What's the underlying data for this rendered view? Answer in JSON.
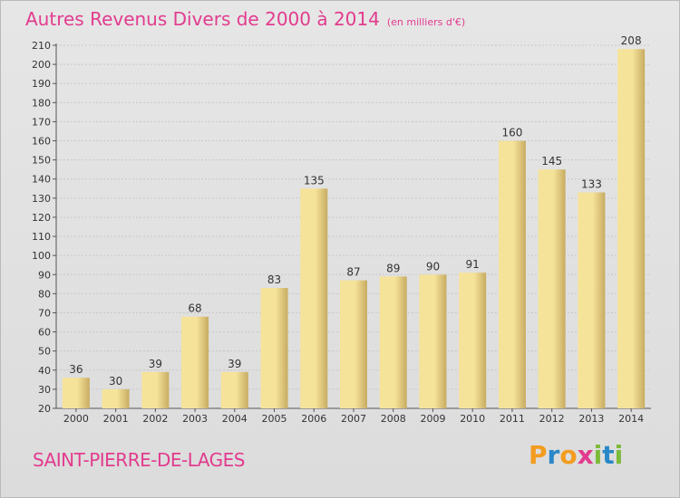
{
  "title": "Autres Revenus Divers de 2000 à 2014",
  "title_unit": "(en milliers d'€)",
  "commune": "SAINT-PIERRE-DE-LAGES",
  "logo": {
    "letters": [
      "P",
      "r",
      "o",
      "x",
      "i",
      "t",
      "i"
    ],
    "colors": [
      "#f39c1f",
      "#2a87c8",
      "#f39c1f",
      "#e23b8e",
      "#7cba3a",
      "#2a87c8",
      "#7cba3a"
    ]
  },
  "colors": {
    "bar_light": "#f6e39a",
    "bar_dark": "#c7ac62",
    "title": "#e23b8e"
  },
  "chart_data": {
    "type": "bar",
    "categories": [
      "2000",
      "2001",
      "2002",
      "2003",
      "2004",
      "2005",
      "2006",
      "2007",
      "2008",
      "2009",
      "2010",
      "2011",
      "2012",
      "2013",
      "2014"
    ],
    "values": [
      36,
      30,
      39,
      68,
      39,
      83,
      135,
      87,
      89,
      90,
      91,
      160,
      145,
      133,
      208
    ],
    "ylim": [
      20,
      210
    ],
    "yticks": [
      20,
      30,
      40,
      50,
      60,
      70,
      80,
      90,
      100,
      110,
      120,
      130,
      140,
      150,
      160,
      170,
      180,
      190,
      200,
      210
    ],
    "grid": true
  }
}
